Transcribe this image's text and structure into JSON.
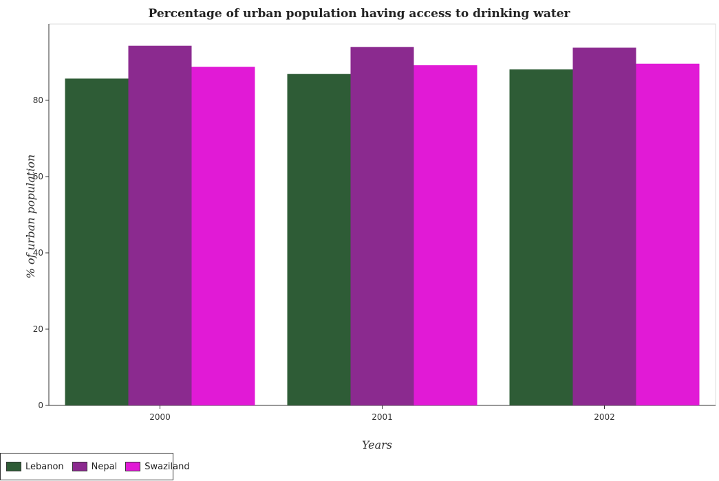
{
  "chart_data": {
    "type": "bar",
    "title": "Percentage of urban population having access to drinking water",
    "xlabel": "Years",
    "ylabel": "% of urban population",
    "categories": [
      "2000",
      "2001",
      "2002"
    ],
    "series": [
      {
        "name": "Lebanon",
        "color": "#2e5c36",
        "values": [
          85.7,
          86.9,
          88.1
        ]
      },
      {
        "name": "Nepal",
        "color": "#8b2a8f",
        "values": [
          94.3,
          94.0,
          93.8
        ]
      },
      {
        "name": "Swaziland",
        "color": "#e11ad6",
        "values": [
          88.8,
          89.2,
          89.6
        ]
      }
    ],
    "ylim": [
      0,
      100
    ],
    "yticks": [
      0,
      20,
      40,
      60,
      80
    ],
    "grid": false,
    "legend_position": "bottom-left"
  }
}
